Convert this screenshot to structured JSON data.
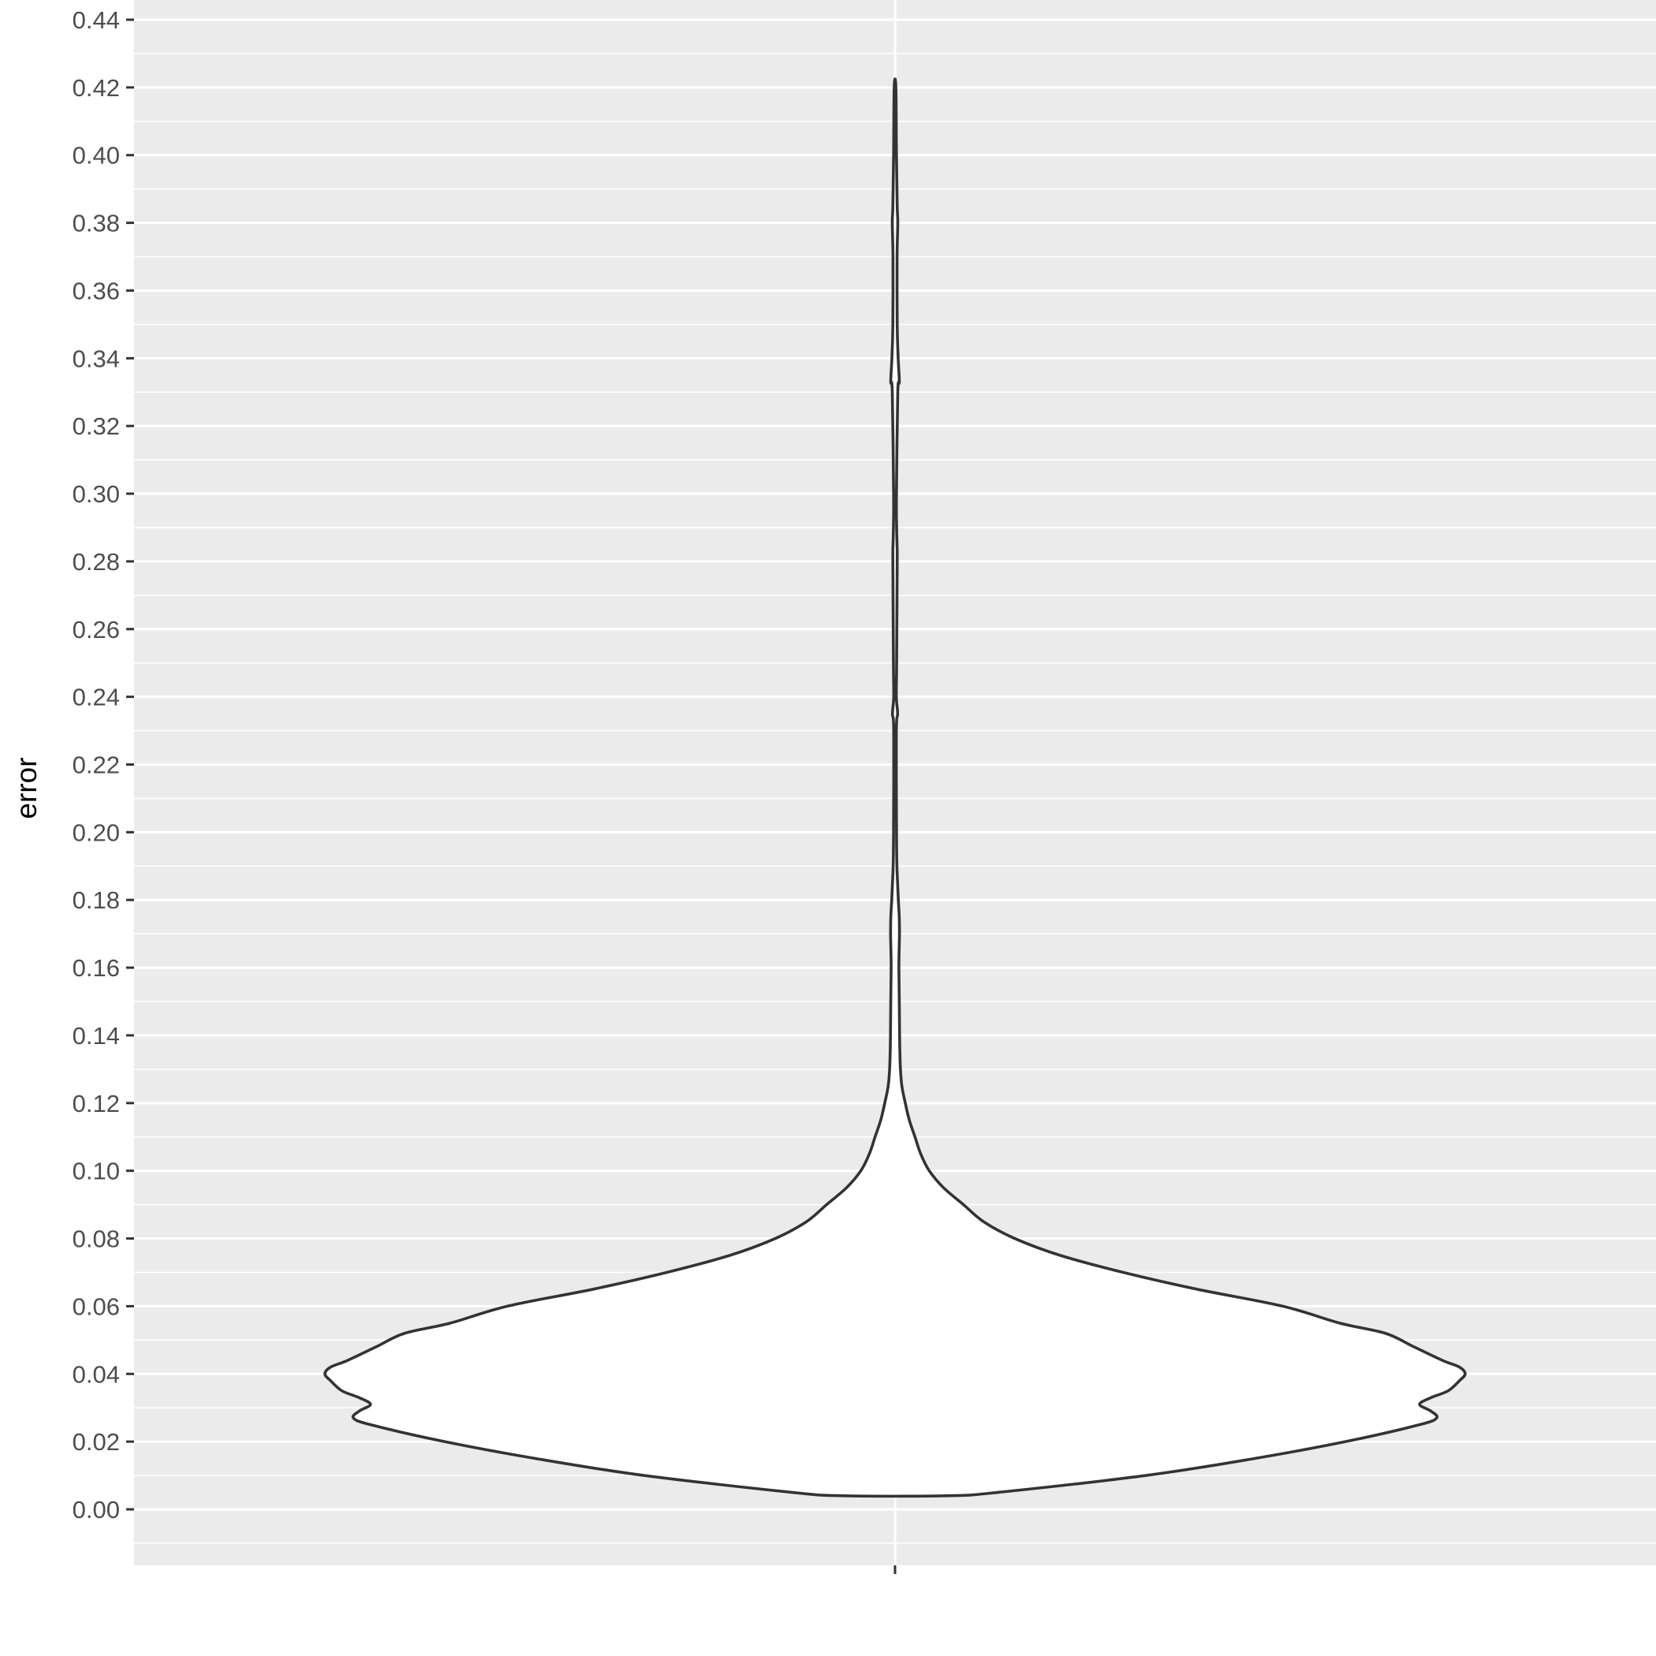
{
  "chart_data": {
    "type": "violin",
    "title": "",
    "xlabel": "",
    "ylabel": "error",
    "categories": [
      ""
    ],
    "ylim": [
      -0.016,
      0.44
    ],
    "y_ticks": [
      0.0,
      0.02,
      0.04,
      0.06,
      0.08,
      0.1,
      0.12,
      0.14,
      0.16,
      0.18,
      0.2,
      0.22,
      0.24,
      0.26,
      0.28,
      0.3,
      0.32,
      0.34,
      0.36,
      0.38,
      0.4,
      0.42,
      0.44
    ],
    "y_tick_labels": [
      "0.00",
      "0.02",
      "0.04",
      "0.06",
      "0.08",
      "0.10",
      "0.12",
      "0.14",
      "0.16",
      "0.18",
      "0.20",
      "0.22",
      "0.24",
      "0.26",
      "0.28",
      "0.30",
      "0.32",
      "0.34",
      "0.36",
      "0.38",
      "0.40",
      "0.42",
      "0.44"
    ],
    "grid": true,
    "legend": "none",
    "colors": {
      "panel_background": "#ebebeb",
      "grid_line": "#ffffff",
      "violin_fill": "#ffffff",
      "violin_outline": "#333333",
      "tick_mark": "#333333"
    },
    "density_relative_width": {
      "y": [
        0.004,
        0.005,
        0.01,
        0.015,
        0.02,
        0.025,
        0.027,
        0.029,
        0.031,
        0.033,
        0.035,
        0.038,
        0.04,
        0.042,
        0.044,
        0.048,
        0.052,
        0.055,
        0.06,
        0.065,
        0.07,
        0.075,
        0.08,
        0.085,
        0.09,
        0.095,
        0.1,
        0.105,
        0.11,
        0.115,
        0.12,
        0.125,
        0.13,
        0.135,
        0.14,
        0.15,
        0.16,
        0.165,
        0.17,
        0.175,
        0.18,
        0.185,
        0.19,
        0.2,
        0.23,
        0.235,
        0.24,
        0.25,
        0.28,
        0.285,
        0.29,
        0.3,
        0.33,
        0.333,
        0.34,
        0.35,
        0.37,
        0.38,
        0.385,
        0.4,
        0.42
      ],
      "width": [
        0.09,
        0.18,
        0.44,
        0.63,
        0.79,
        0.92,
        0.95,
        0.94,
        0.92,
        0.94,
        0.97,
        0.99,
        1.0,
        0.99,
        0.96,
        0.91,
        0.86,
        0.78,
        0.68,
        0.53,
        0.4,
        0.29,
        0.21,
        0.155,
        0.12,
        0.085,
        0.06,
        0.045,
        0.035,
        0.025,
        0.018,
        0.012,
        0.0095,
        0.0085,
        0.008,
        0.0075,
        0.0068,
        0.0072,
        0.0078,
        0.0074,
        0.0058,
        0.0045,
        0.0033,
        0.0026,
        0.0023,
        0.0045,
        0.0023,
        0.0028,
        0.0038,
        0.0035,
        0.0028,
        0.0025,
        0.0048,
        0.0075,
        0.0055,
        0.0038,
        0.0036,
        0.0048,
        0.0038,
        0.0025,
        0.0015
      ]
    }
  }
}
